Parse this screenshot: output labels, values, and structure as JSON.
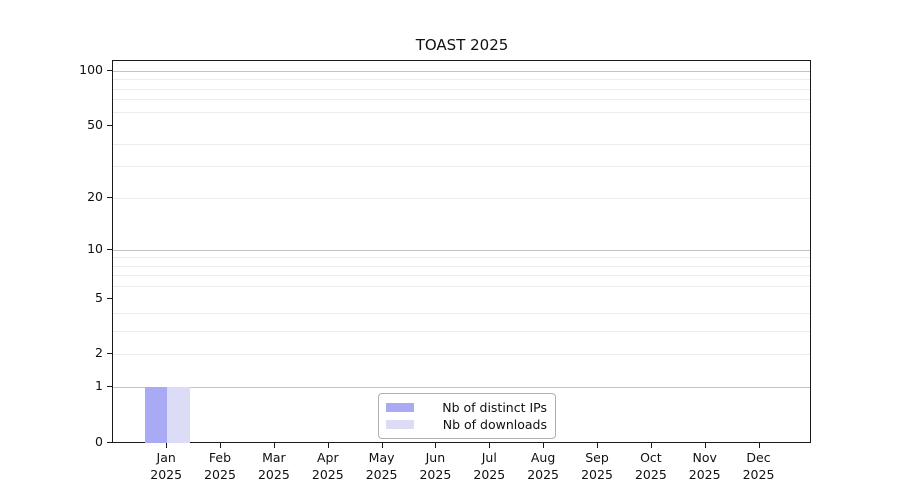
{
  "chart_data": {
    "type": "bar",
    "title": "TOAST 2025",
    "categories": [
      {
        "month": "Jan",
        "year": "2025"
      },
      {
        "month": "Feb",
        "year": "2025"
      },
      {
        "month": "Mar",
        "year": "2025"
      },
      {
        "month": "Apr",
        "year": "2025"
      },
      {
        "month": "May",
        "year": "2025"
      },
      {
        "month": "Jun",
        "year": "2025"
      },
      {
        "month": "Jul",
        "year": "2025"
      },
      {
        "month": "Aug",
        "year": "2025"
      },
      {
        "month": "Sep",
        "year": "2025"
      },
      {
        "month": "Oct",
        "year": "2025"
      },
      {
        "month": "Nov",
        "year": "2025"
      },
      {
        "month": "Dec",
        "year": "2025"
      }
    ],
    "series": [
      {
        "name": "Nb of distinct IPs",
        "color": "#a9a9f4",
        "values": [
          1,
          0,
          0,
          0,
          0,
          0,
          0,
          0,
          0,
          0,
          0,
          0
        ]
      },
      {
        "name": "Nb of downloads",
        "color": "#dcdcf7",
        "values": [
          1,
          0,
          0,
          0,
          0,
          0,
          0,
          0,
          0,
          0,
          0,
          0
        ]
      }
    ],
    "y_axis": {
      "scale": "log1p",
      "tick_values": [
        0,
        1,
        2,
        5,
        10,
        20,
        50,
        100
      ],
      "tick_labels": [
        "0",
        "1",
        "2",
        "5",
        "10",
        "20",
        "50",
        "100"
      ],
      "ylim": [
        0,
        113
      ],
      "major_grid_values": [
        1,
        10,
        100
      ],
      "minor_grid_values": [
        2,
        3,
        4,
        6,
        7,
        8,
        9,
        20,
        30,
        40,
        60,
        70,
        80,
        90
      ]
    },
    "grid": {
      "minor_color": "#ececec",
      "major_color": "#c3c3c3"
    },
    "legend": {
      "position": "lower center"
    }
  }
}
